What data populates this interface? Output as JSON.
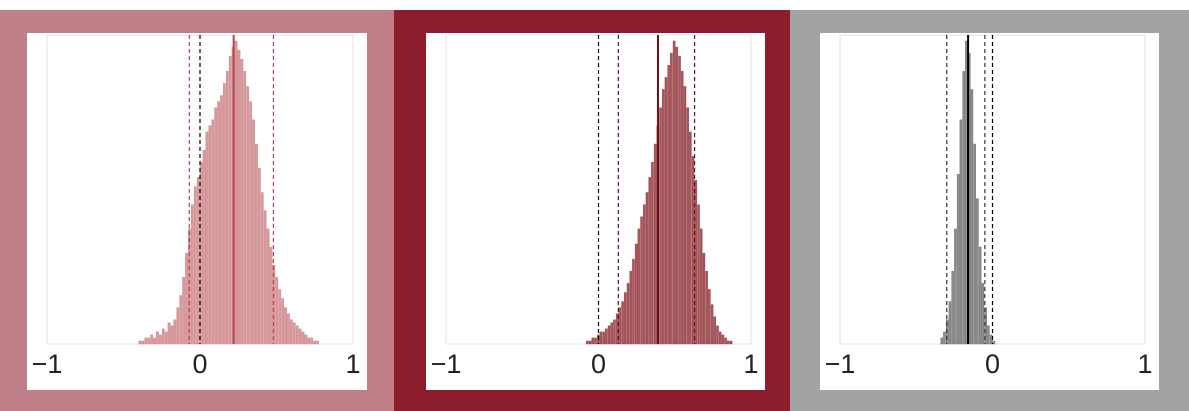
{
  "panels": [
    {
      "frame_color": "#be7f88",
      "bar_color": "#d99a9d",
      "bar_edge": "#c98588",
      "median_color": "#b5444e",
      "ci_color": "#b5444e",
      "zero_color": "#000000",
      "chart_data": {
        "type": "bar",
        "xlim": [
          -1,
          1
        ],
        "xticks": [
          "−1",
          "0",
          "1"
        ],
        "grid": false,
        "median": 0.22,
        "ci": [
          -0.07,
          0.48
        ],
        "zero_line": 0,
        "hist": {
          "range": [
            -0.4,
            0.78
          ],
          "counts": [
            1,
            1,
            2,
            2,
            3,
            2,
            4,
            3,
            5,
            4,
            7,
            6,
            8,
            12,
            16,
            22,
            30,
            38,
            46,
            52,
            55,
            60,
            64,
            70,
            72,
            74,
            78,
            80,
            82,
            86,
            90,
            95,
            98,
            100,
            97,
            94,
            90,
            85,
            80,
            74,
            66,
            58,
            50,
            44,
            38,
            32,
            26,
            22,
            18,
            15,
            12,
            10,
            8,
            7,
            6,
            5,
            4,
            3,
            2,
            2,
            1,
            1
          ]
        }
      }
    },
    {
      "frame_color": "#8b1d2c",
      "bar_color": "#a8585d",
      "bar_edge": "#8e3d43",
      "median_color": "#6b0f19",
      "ci_color": "#6b0f19",
      "zero_color": "#000000",
      "chart_data": {
        "type": "bar",
        "xlim": [
          -1,
          1
        ],
        "xticks": [
          "−1",
          "0",
          "1"
        ],
        "grid": false,
        "median": 0.39,
        "ci": [
          0.13,
          0.63
        ],
        "zero_line": 0,
        "hist": {
          "range": [
            -0.08,
            0.88
          ],
          "counts": [
            1,
            1,
            2,
            2,
            3,
            4,
            4,
            5,
            6,
            7,
            8,
            10,
            12,
            14,
            17,
            20,
            24,
            28,
            33,
            38,
            42,
            46,
            50,
            55,
            60,
            66,
            72,
            78,
            84,
            88,
            92,
            96,
            100,
            98,
            95,
            90,
            85,
            78,
            70,
            62,
            54,
            46,
            38,
            30,
            24,
            18,
            13,
            9,
            6,
            4,
            3,
            2,
            1,
            1
          ]
        }
      }
    },
    {
      "frame_color": "#a3a3a3",
      "bar_color": "#8c8c8c",
      "bar_edge": "#6e6e6e",
      "median_color": "#000000",
      "ci_color": "#333333",
      "zero_color": "#000000",
      "chart_data": {
        "type": "bar",
        "xlim": [
          -1,
          1
        ],
        "xticks": [
          "−1",
          "0",
          "1"
        ],
        "grid": false,
        "median": -0.16,
        "ci": [
          -0.3,
          -0.05
        ],
        "zero_line": 0,
        "hist": {
          "range": [
            -0.34,
            0.02
          ],
          "counts": [
            2,
            4,
            8,
            14,
            24,
            38,
            56,
            74,
            90,
            100,
            96,
            84,
            66,
            48,
            32,
            20,
            12,
            6,
            3,
            1
          ]
        }
      }
    }
  ]
}
